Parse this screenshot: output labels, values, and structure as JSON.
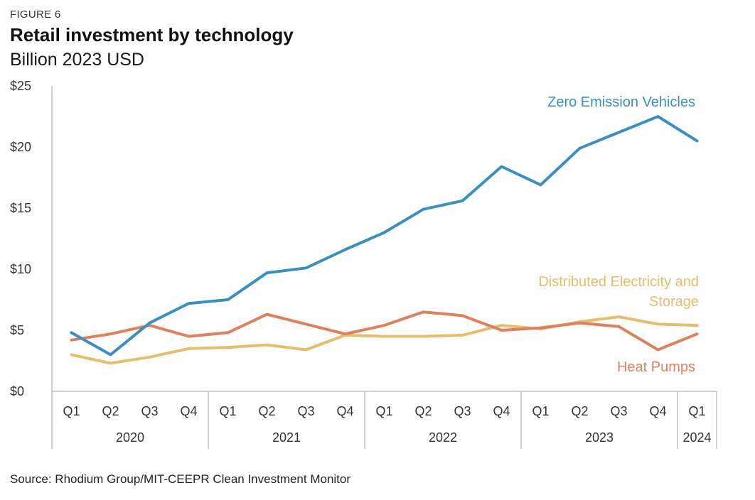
{
  "header": {
    "figure_label": "FIGURE 6",
    "title": "Retail investment by technology",
    "subtitle": "Billion 2023 USD"
  },
  "source": "Source: Rhodium Group/MIT-CEEPR Clean Investment Monitor",
  "chart_data": {
    "type": "line",
    "title": "Retail investment by technology",
    "subtitle": "Billion 2023 USD",
    "x": [
      "2020 Q1",
      "2020 Q2",
      "2020 Q3",
      "2020 Q4",
      "2021 Q1",
      "2021 Q2",
      "2021 Q3",
      "2021 Q4",
      "2022 Q1",
      "2022 Q2",
      "2022 Q3",
      "2022 Q4",
      "2023 Q1",
      "2023 Q2",
      "2023 Q3",
      "2023 Q4",
      "2024 Q1"
    ],
    "quarter_labels": [
      "Q1",
      "Q2",
      "Q3",
      "Q4",
      "Q1",
      "Q2",
      "Q3",
      "Q4",
      "Q1",
      "Q2",
      "Q3",
      "Q4",
      "Q1",
      "Q2",
      "Q3",
      "Q4",
      "Q1"
    ],
    "year_groups": [
      {
        "label": "2020",
        "count": 4
      },
      {
        "label": "2021",
        "count": 4
      },
      {
        "label": "2022",
        "count": 4
      },
      {
        "label": "2023",
        "count": 4
      },
      {
        "label": "2024",
        "count": 1
      }
    ],
    "y_ticks": [
      "$0",
      "$5",
      "$10",
      "$15",
      "$20",
      "$25"
    ],
    "ylim": [
      0,
      25
    ],
    "grid": false,
    "series": [
      {
        "name": "Zero Emission Vehicles",
        "color": "#3a8fc1",
        "values": [
          4.8,
          3.0,
          5.6,
          7.2,
          7.5,
          9.7,
          10.1,
          11.6,
          13.0,
          14.9,
          15.6,
          18.4,
          16.9,
          19.9,
          21.2,
          22.5,
          20.5
        ]
      },
      {
        "name": "Distributed Electricity and Storage",
        "color": "#e8bd6a",
        "values": [
          3.0,
          2.3,
          2.8,
          3.5,
          3.6,
          3.8,
          3.4,
          4.6,
          4.5,
          4.5,
          4.6,
          5.4,
          5.1,
          5.7,
          6.1,
          5.5,
          5.4
        ]
      },
      {
        "name": "Heat Pumps",
        "color": "#e07f5b",
        "values": [
          4.2,
          4.7,
          5.4,
          4.5,
          4.8,
          6.3,
          5.5,
          4.7,
          5.4,
          6.5,
          6.2,
          5.0,
          5.2,
          5.6,
          5.3,
          3.4,
          4.7
        ]
      }
    ]
  }
}
